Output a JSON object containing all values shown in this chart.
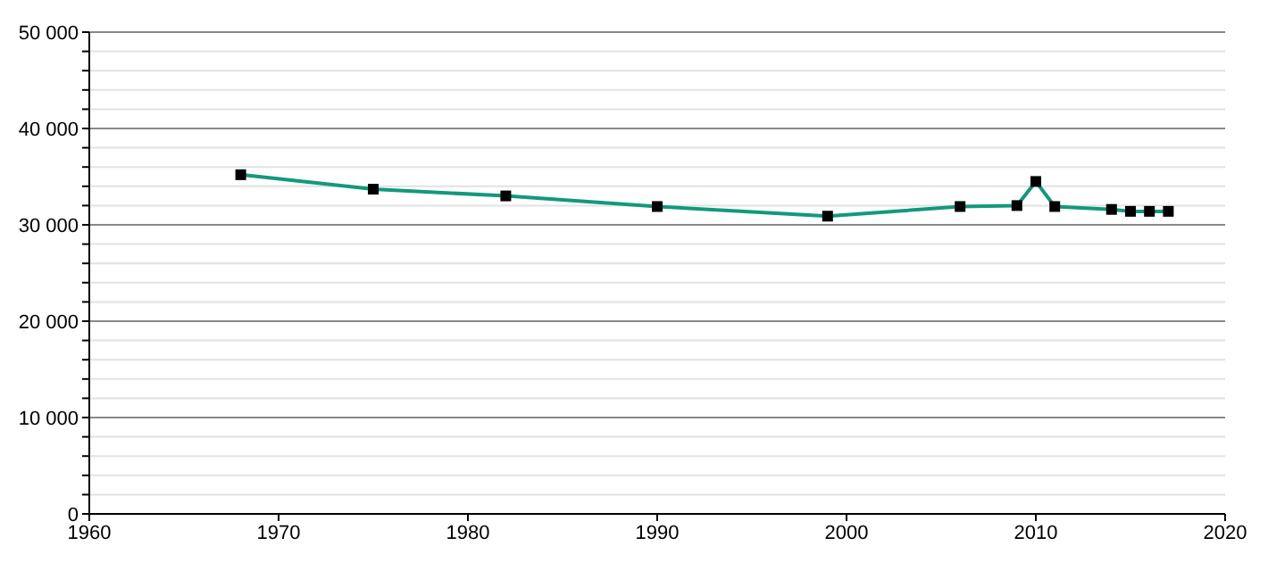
{
  "chart_data": {
    "type": "line",
    "x": [
      1968,
      1975,
      1982,
      1990,
      1999,
      2006,
      2009,
      2010,
      2011,
      2014,
      2015,
      2016,
      2017
    ],
    "series": [
      {
        "color": "#13997a",
        "values": [
          35200,
          33700,
          33000,
          31900,
          30900,
          31900,
          32000,
          34500,
          31900,
          31600,
          31400,
          31400,
          31400
        ]
      }
    ],
    "xlim": [
      1960,
      2020
    ],
    "xticks": [
      1960,
      1970,
      1980,
      1990,
      2000,
      2010,
      2020
    ],
    "ylim": [
      0,
      50000
    ],
    "yticks": [
      0,
      {
        "value": 2000,
        "label": null
      },
      {
        "value": 4000,
        "label": null
      },
      {
        "value": 6000,
        "label": null
      },
      {
        "value": 8000,
        "label": null
      },
      {
        "value": 10000,
        "label": "10 000"
      },
      {
        "value": 12000,
        "label": null
      },
      {
        "value": 14000,
        "label": null
      },
      {
        "value": 16000,
        "label": null
      },
      {
        "value": 18000,
        "label": null
      },
      {
        "value": 20000,
        "label": "20 000"
      },
      {
        "value": 22000,
        "label": null
      },
      {
        "value": 24000,
        "label": null
      },
      {
        "value": 26000,
        "label": null
      },
      {
        "value": 28000,
        "label": null
      },
      {
        "value": 30000,
        "label": "30 000"
      },
      {
        "value": 32000,
        "label": null
      },
      {
        "value": 34000,
        "label": null
      },
      {
        "value": 36000,
        "label": null
      },
      {
        "value": 38000,
        "label": null
      },
      {
        "value": 40000,
        "label": "40 000"
      },
      {
        "value": 42000,
        "label": null
      },
      {
        "value": 44000,
        "label": null
      },
      {
        "value": 46000,
        "label": null
      },
      {
        "value": 48000,
        "label": null
      },
      {
        "value": 50000,
        "label": "50 000"
      }
    ],
    "grid": "y",
    "marker": "square",
    "line_style": "solid"
  }
}
